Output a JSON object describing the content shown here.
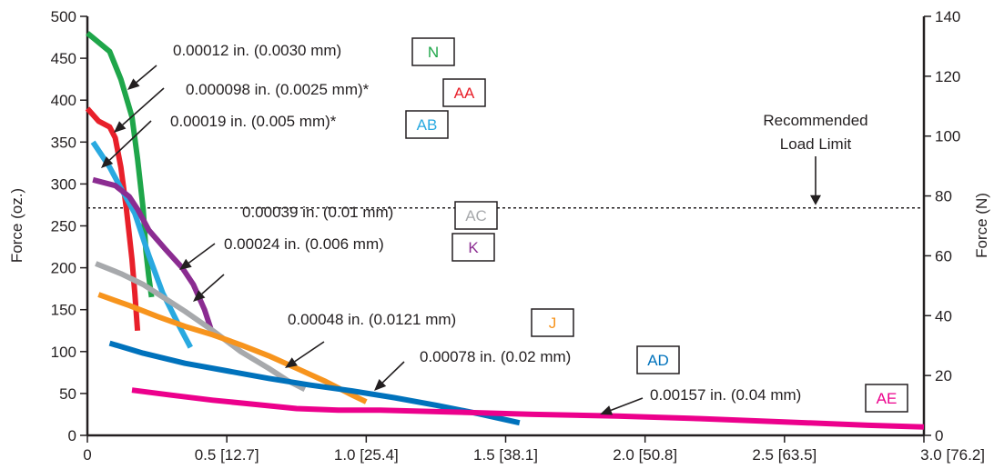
{
  "chart_data": {
    "type": "line",
    "title": "",
    "xlabel": "",
    "ylabel": "Force (oz.)",
    "y2label": "Force (N)",
    "xlim": [
      0,
      3.0
    ],
    "ylim": [
      0,
      500
    ],
    "y2lim": [
      0,
      140
    ],
    "grid": false,
    "legend": "none",
    "x_ticks": [
      {
        "value": 0,
        "label": "0"
      },
      {
        "value": 0.5,
        "label": "0.5 [12.7]"
      },
      {
        "value": 1.0,
        "label": "1.0 [25.4]"
      },
      {
        "value": 1.5,
        "label": "1.5 [38.1]"
      },
      {
        "value": 2.0,
        "label": "2.0 [50.8]"
      },
      {
        "value": 2.5,
        "label": "2.5 [63.5]"
      },
      {
        "value": 3.0,
        "label": "3.0 [76.2]"
      }
    ],
    "y_ticks": [
      {
        "value": 0,
        "label": "0"
      },
      {
        "value": 50,
        "label": "50"
      },
      {
        "value": 100,
        "label": "100"
      },
      {
        "value": 150,
        "label": "150"
      },
      {
        "value": 200,
        "label": "200"
      },
      {
        "value": 250,
        "label": "250"
      },
      {
        "value": 300,
        "label": "300"
      },
      {
        "value": 350,
        "label": "350"
      },
      {
        "value": 400,
        "label": "400"
      },
      {
        "value": 450,
        "label": "450"
      },
      {
        "value": 500,
        "label": "500"
      }
    ],
    "y2_ticks": [
      {
        "value": 0,
        "label": "0"
      },
      {
        "value": 20,
        "label": "20"
      },
      {
        "value": 40,
        "label": "40"
      },
      {
        "value": 60,
        "label": "60"
      },
      {
        "value": 80,
        "label": "80"
      },
      {
        "value": 100,
        "label": "100"
      },
      {
        "value": 120,
        "label": "120"
      },
      {
        "value": 140,
        "label": "140"
      }
    ],
    "reference_line": {
      "y2": 76,
      "label_lines": [
        "Recommended",
        "Load Limit"
      ]
    },
    "series": [
      {
        "name": "N",
        "annotation": "0.00012 in. (0.0030 mm)",
        "color": "#1fa64a",
        "x": [
          0.0,
          0.08,
          0.12,
          0.16,
          0.18,
          0.2,
          0.21,
          0.22,
          0.23
        ],
        "y": [
          480,
          458,
          425,
          380,
          330,
          270,
          220,
          190,
          165
        ]
      },
      {
        "name": "AA",
        "annotation": "0.000098 in. (0.0025 mm)*",
        "color": "#e8202a",
        "x": [
          0.0,
          0.04,
          0.08,
          0.1,
          0.12,
          0.14,
          0.16,
          0.17,
          0.18
        ],
        "y": [
          390,
          375,
          368,
          355,
          320,
          270,
          210,
          170,
          125
        ]
      },
      {
        "name": "AB",
        "annotation": "0.00019 in. (0.005 mm)*",
        "color": "#29a9e0",
        "x": [
          0.02,
          0.05,
          0.08,
          0.12,
          0.17,
          0.22,
          0.27,
          0.33,
          0.37
        ],
        "y": [
          350,
          335,
          320,
          295,
          265,
          215,
          170,
          130,
          105
        ]
      },
      {
        "name": "K",
        "annotation": "0.00024 in. (0.006 mm)",
        "color": "#8b2c91",
        "x": [
          0.02,
          0.1,
          0.15,
          0.18,
          0.22,
          0.28,
          0.34,
          0.38,
          0.42,
          0.45
        ],
        "y": [
          305,
          298,
          285,
          270,
          245,
          222,
          200,
          180,
          150,
          120
        ]
      },
      {
        "name": "AC",
        "annotation": "0.00039 in. (0.01 mm)",
        "color": "#a7a9ac",
        "x": [
          0.03,
          0.12,
          0.2,
          0.28,
          0.35,
          0.45,
          0.55,
          0.65,
          0.72,
          0.78
        ],
        "y": [
          205,
          193,
          180,
          163,
          148,
          125,
          100,
          80,
          65,
          55
        ]
      },
      {
        "name": "J",
        "annotation": "0.00048 in. (0.0121 mm)",
        "color": "#f7941d",
        "x": [
          0.04,
          0.15,
          0.25,
          0.35,
          0.45,
          0.55,
          0.65,
          0.75,
          0.85,
          0.95,
          1.0
        ],
        "y": [
          168,
          155,
          142,
          130,
          120,
          108,
          95,
          80,
          65,
          48,
          40
        ]
      },
      {
        "name": "AD",
        "annotation": "0.00078 in. (0.02 mm)",
        "color": "#0072bc",
        "x": [
          0.08,
          0.2,
          0.35,
          0.5,
          0.65,
          0.8,
          0.95,
          1.1,
          1.25,
          1.4,
          1.55
        ],
        "y": [
          110,
          98,
          86,
          77,
          68,
          60,
          53,
          45,
          36,
          26,
          15
        ]
      },
      {
        "name": "AE",
        "annotation": "0.00157 in. (0.04 mm)",
        "color": "#ec008c",
        "x": [
          0.16,
          0.3,
          0.45,
          0.6,
          0.75,
          0.9,
          1.05,
          1.3,
          1.6,
          1.9,
          2.2,
          2.5,
          2.8,
          3.0
        ],
        "y": [
          54,
          48,
          42,
          37,
          32,
          30,
          30,
          28,
          25,
          23,
          20,
          16,
          12,
          10
        ]
      }
    ]
  }
}
